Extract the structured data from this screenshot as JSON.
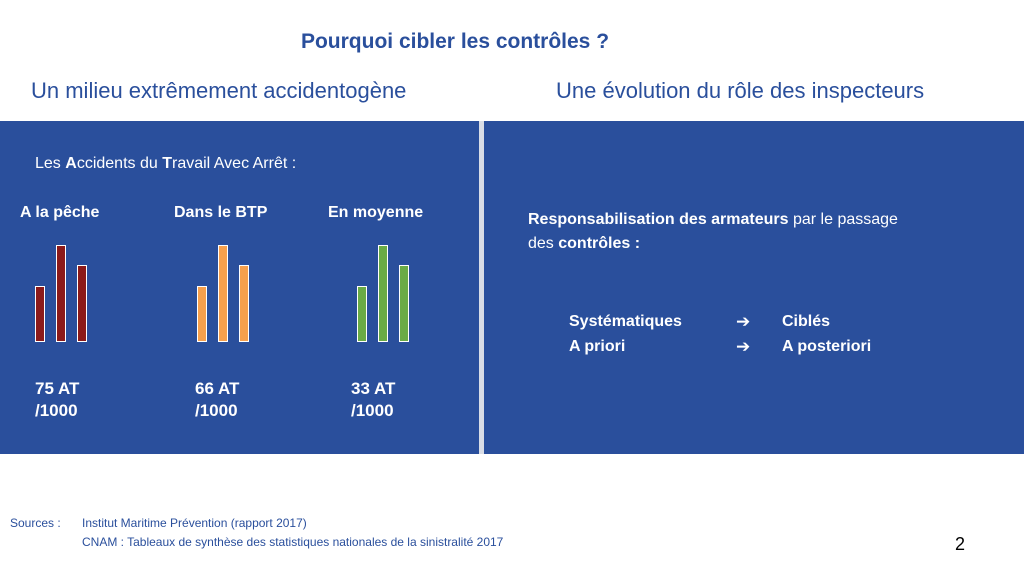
{
  "title": "Pourquoi cibler les contrôles ?",
  "left_heading": "Un milieu extrêmement accidentogène",
  "right_heading": "Une évolution du rôle des inspecteurs",
  "intro": {
    "part1": "Les ",
    "b1": "A",
    "part2": "ccidents du ",
    "b2": "T",
    "part3": "ravail Avec Arrêt :"
  },
  "groups": [
    {
      "label": "A la pêche",
      "stat": "75 AT\n/1000",
      "bar_color": "#8b1a1a",
      "bar_levels": [
        0.55,
        0.95,
        0.75
      ]
    },
    {
      "label": "Dans le BTP",
      "stat": "66 AT\n/1000",
      "bar_color": "#f6a04d",
      "bar_levels": [
        0.55,
        0.95,
        0.75
      ]
    },
    {
      "label": "En moyenne",
      "stat": "33 AT\n/1000",
      "bar_color": "#6aab46",
      "bar_levels": [
        0.55,
        0.95,
        0.75
      ]
    }
  ],
  "responsibility": {
    "bold1": "Responsabilisation des armateurs",
    "text1": " par le passage des ",
    "bold2": "contrôles :"
  },
  "changes": [
    {
      "from": "Systématiques",
      "arrow": "➔",
      "to": "Ciblés"
    },
    {
      "from": "A priori",
      "arrow": "➔",
      "to": "A posteriori"
    }
  ],
  "sources": {
    "label": "Sources :",
    "lines": [
      "Institut Maritime Prévention (rapport 2017)",
      "CNAM : Tableaux de synthèse des statistiques nationales de la sinistralité 2017"
    ]
  },
  "page_number": "2"
}
